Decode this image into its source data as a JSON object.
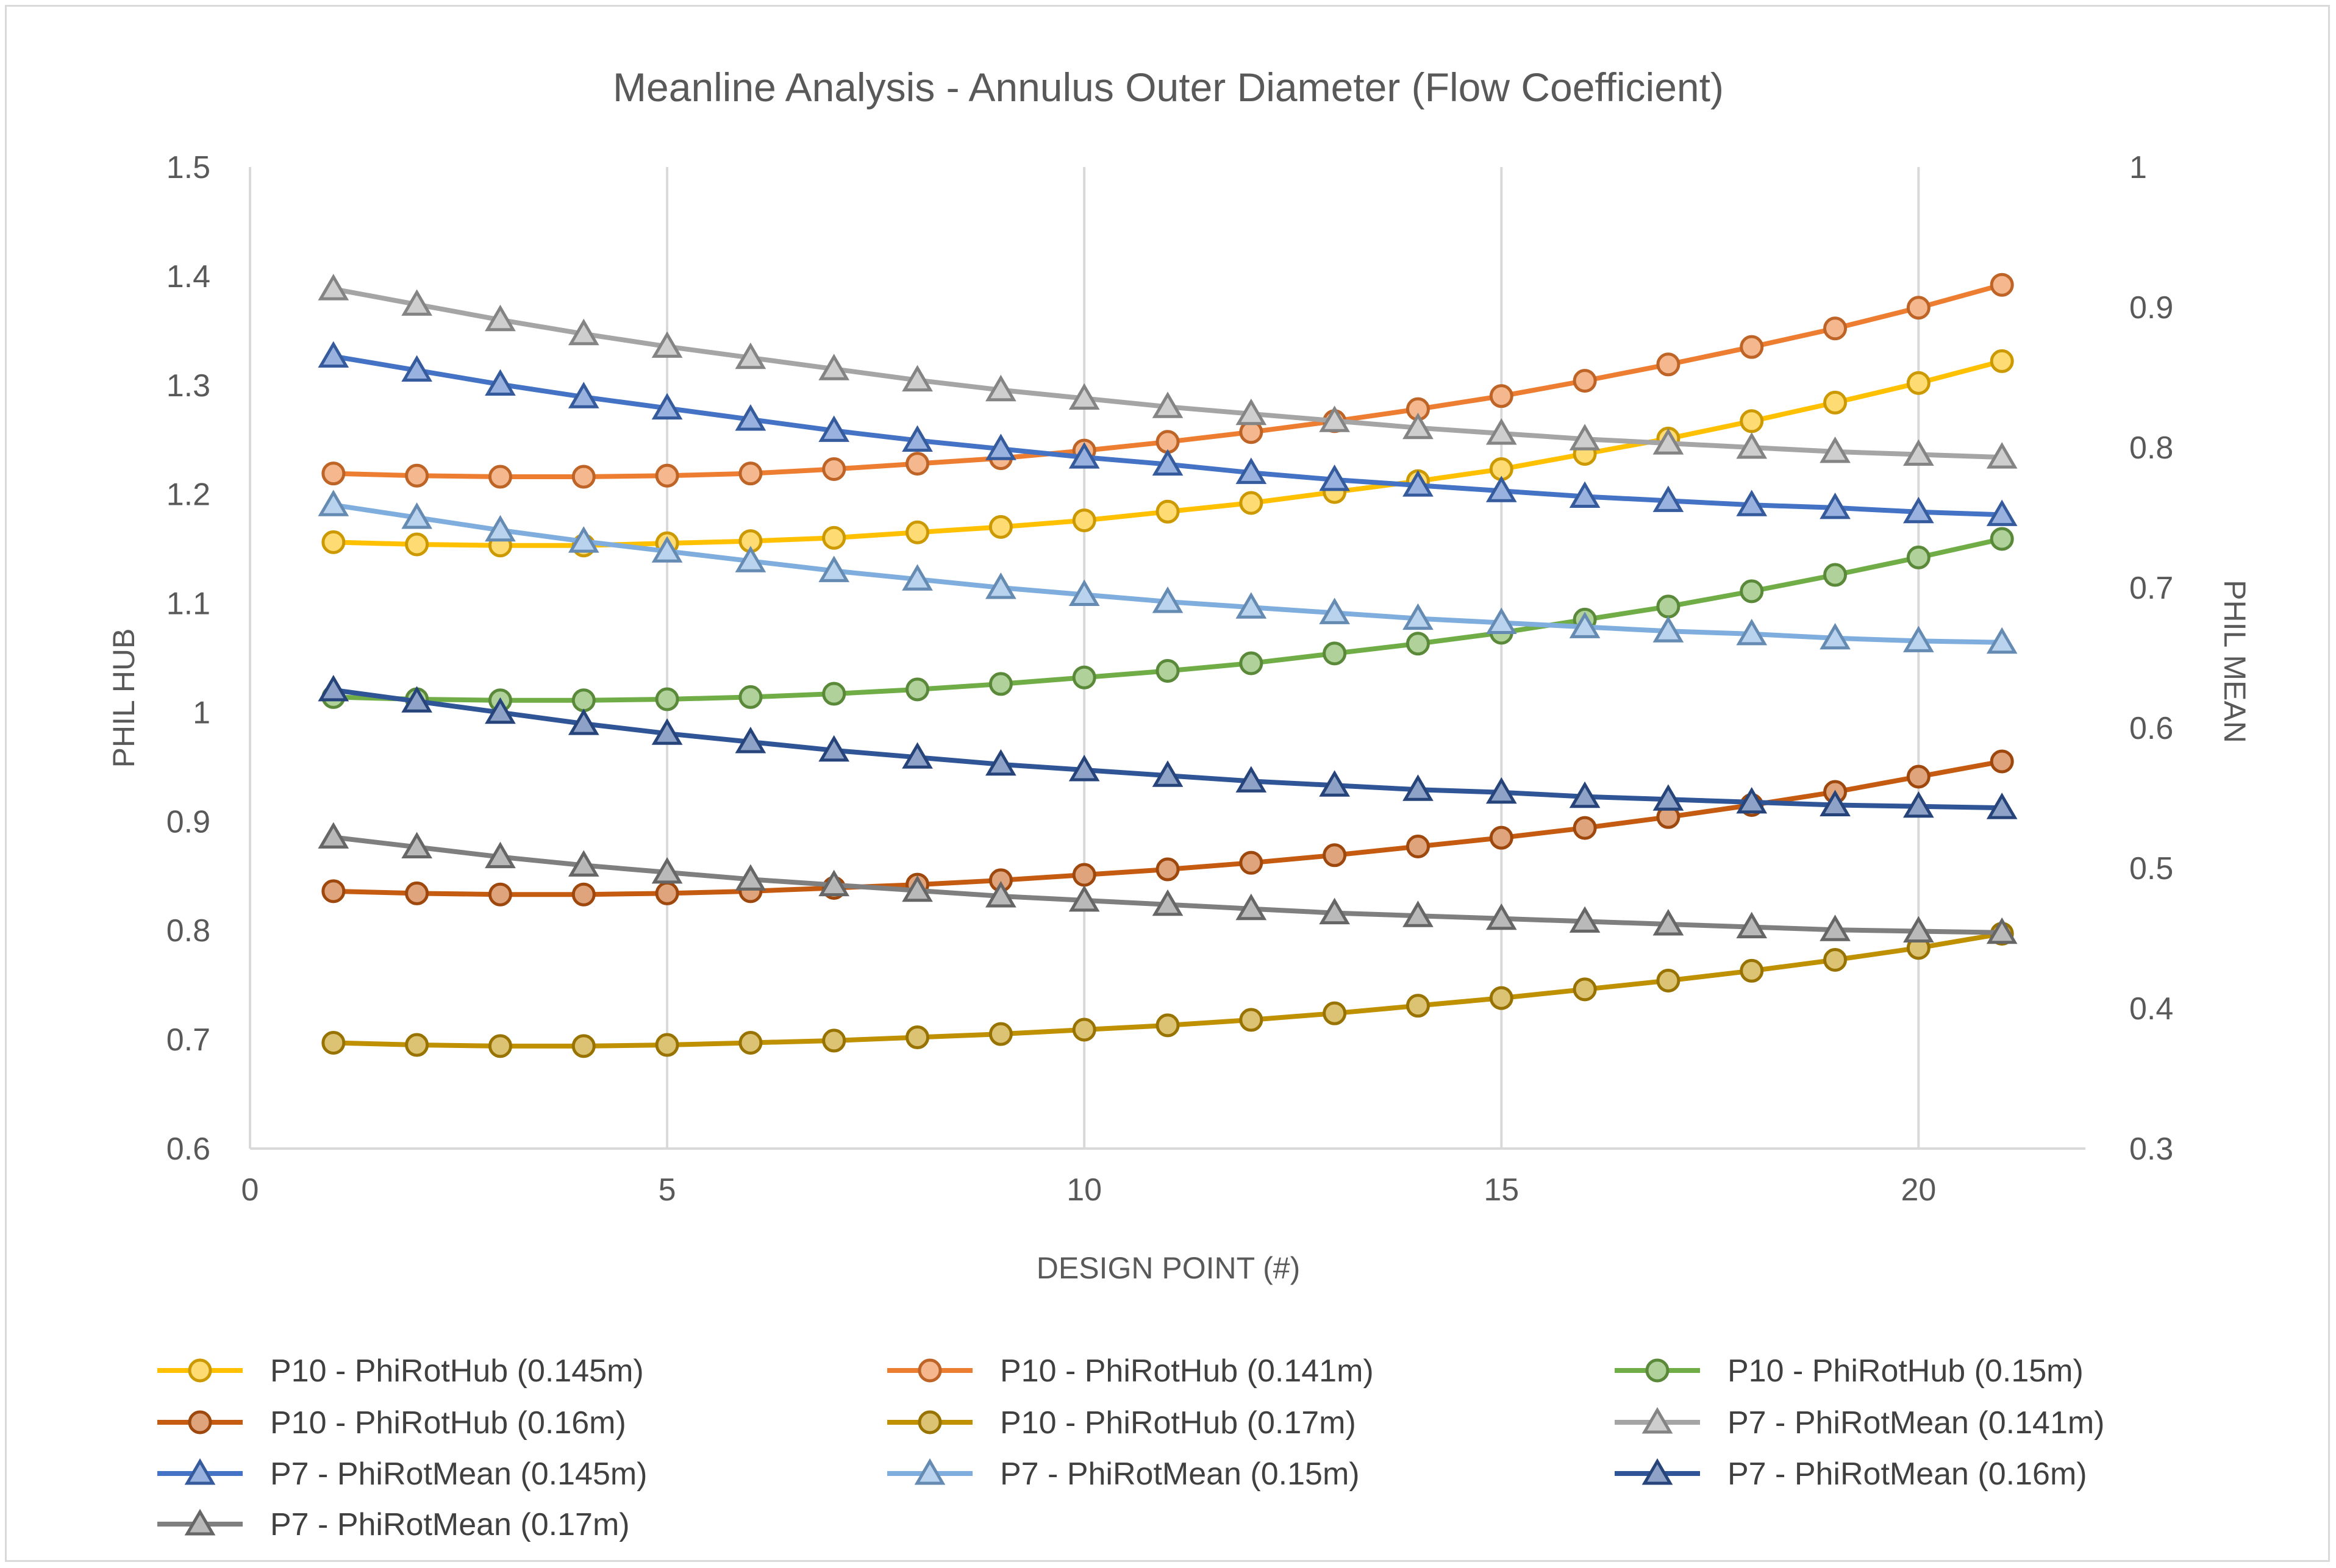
{
  "chart_data": {
    "type": "line",
    "title": "Meanline Analysis - Annulus Outer Diameter (Flow Coefficient)",
    "xlabel": "DESIGN POINT (#)",
    "ylabel_left": "PHIL HUB",
    "ylabel_right": "PHIL MEAN",
    "xlim": [
      0,
      22
    ],
    "ylim_left": [
      0.6,
      1.5
    ],
    "ylim_right": [
      0.3,
      1.0
    ],
    "x_ticks": [
      0,
      5,
      10,
      15,
      20
    ],
    "y_ticks_left": [
      0.6,
      0.7,
      0.8,
      0.9,
      1,
      1.1,
      1.2,
      1.3,
      1.4,
      1.5
    ],
    "y_ticks_right": [
      0.3,
      0.4,
      0.5,
      0.6,
      0.7,
      0.8,
      0.9,
      1
    ],
    "grid": "vertical",
    "legend_position": "bottom",
    "x": [
      1,
      2,
      3,
      4,
      5,
      6,
      7,
      8,
      9,
      10,
      11,
      12,
      13,
      14,
      15,
      16,
      17,
      18,
      19,
      20,
      21
    ],
    "series": [
      {
        "name": "P10 - PhiRotHub (0.145m)",
        "axis": "left",
        "marker": "circle",
        "color": "#FFC000",
        "values": [
          1.156,
          1.154,
          1.153,
          1.153,
          1.155,
          1.157,
          1.16,
          1.165,
          1.17,
          1.176,
          1.184,
          1.192,
          1.202,
          1.212,
          1.223,
          1.237,
          1.251,
          1.267,
          1.284,
          1.302,
          1.322
        ]
      },
      {
        "name": "P10 - PhiRotHub (0.141m)",
        "axis": "left",
        "marker": "circle",
        "color": "#ED7D31",
        "values": [
          1.219,
          1.217,
          1.216,
          1.216,
          1.217,
          1.219,
          1.223,
          1.228,
          1.233,
          1.24,
          1.248,
          1.257,
          1.267,
          1.278,
          1.29,
          1.304,
          1.319,
          1.335,
          1.352,
          1.371,
          1.392
        ]
      },
      {
        "name": "P10 - PhiRotHub (0.15m)",
        "axis": "left",
        "marker": "circle",
        "color": "#70AD47",
        "values": [
          1.014,
          1.012,
          1.011,
          1.011,
          1.012,
          1.014,
          1.017,
          1.021,
          1.026,
          1.032,
          1.038,
          1.045,
          1.054,
          1.063,
          1.073,
          1.085,
          1.097,
          1.111,
          1.126,
          1.142,
          1.159
        ]
      },
      {
        "name": "P10 - PhiRotHub (0.16m)",
        "axis": "left",
        "marker": "circle",
        "color": "#C55A11",
        "values": [
          0.836,
          0.834,
          0.833,
          0.833,
          0.834,
          0.836,
          0.839,
          0.842,
          0.846,
          0.851,
          0.856,
          0.862,
          0.869,
          0.877,
          0.885,
          0.894,
          0.904,
          0.915,
          0.927,
          0.941,
          0.955
        ]
      },
      {
        "name": "P10 - PhiRotHub (0.17m)",
        "axis": "left",
        "marker": "circle",
        "color": "#BF9000",
        "values": [
          0.697,
          0.695,
          0.694,
          0.694,
          0.695,
          0.697,
          0.699,
          0.702,
          0.705,
          0.709,
          0.713,
          0.718,
          0.724,
          0.731,
          0.738,
          0.746,
          0.754,
          0.763,
          0.773,
          0.784,
          0.797
        ]
      },
      {
        "name": "P7 - PhiRotMean (0.141m)",
        "axis": "right",
        "marker": "triangle",
        "color": "#A5A5A5",
        "values": [
          0.913,
          0.902,
          0.891,
          0.881,
          0.872,
          0.864,
          0.856,
          0.848,
          0.841,
          0.835,
          0.829,
          0.824,
          0.819,
          0.814,
          0.81,
          0.806,
          0.803,
          0.8,
          0.797,
          0.795,
          0.793
        ]
      },
      {
        "name": "P7 - PhiRotMean (0.145m)",
        "axis": "right",
        "marker": "triangle",
        "color": "#4472C4",
        "values": [
          0.865,
          0.855,
          0.845,
          0.836,
          0.828,
          0.82,
          0.812,
          0.805,
          0.799,
          0.793,
          0.788,
          0.782,
          0.777,
          0.773,
          0.769,
          0.765,
          0.762,
          0.759,
          0.757,
          0.754,
          0.752
        ]
      },
      {
        "name": "P7 - PhiRotMean (0.15m)",
        "axis": "right",
        "marker": "triangle",
        "color": "#7FAEDE",
        "values": [
          0.759,
          0.75,
          0.741,
          0.733,
          0.726,
          0.719,
          0.712,
          0.706,
          0.7,
          0.695,
          0.69,
          0.686,
          0.682,
          0.678,
          0.675,
          0.672,
          0.669,
          0.667,
          0.664,
          0.662,
          0.661
        ]
      },
      {
        "name": "P7 - PhiRotMean (0.16m)",
        "axis": "right",
        "marker": "triangle",
        "color": "#2F5597",
        "values": [
          0.627,
          0.619,
          0.611,
          0.603,
          0.596,
          0.59,
          0.584,
          0.579,
          0.574,
          0.57,
          0.566,
          0.562,
          0.559,
          0.556,
          0.554,
          0.551,
          0.549,
          0.547,
          0.545,
          0.544,
          0.543
        ]
      },
      {
        "name": "P7 - PhiRotMean (0.17m)",
        "axis": "right",
        "marker": "triangle",
        "color": "#7F7F7F",
        "values": [
          0.522,
          0.515,
          0.508,
          0.502,
          0.497,
          0.492,
          0.488,
          0.484,
          0.48,
          0.477,
          0.474,
          0.471,
          0.468,
          0.466,
          0.464,
          0.462,
          0.46,
          0.458,
          0.456,
          0.455,
          0.454
        ]
      }
    ]
  }
}
